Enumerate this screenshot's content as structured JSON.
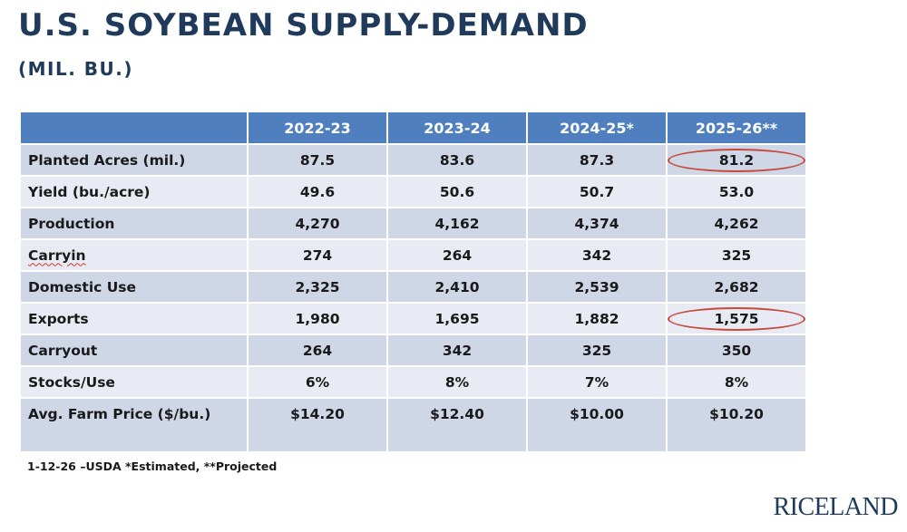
{
  "title": "U.S. SOYBEAN SUPPLY-DEMAND",
  "subtitle": "(MIL. BU.)",
  "table": {
    "columns": [
      "",
      "2022-23",
      "2023-24",
      "2024-25*",
      "2025-26**"
    ],
    "rows": [
      {
        "label": "Planted Acres (mil.)",
        "values": [
          "87.5",
          "83.6",
          "87.3",
          "81.2"
        ]
      },
      {
        "label": "Yield (bu./acre)",
        "values": [
          "49.6",
          "50.6",
          "50.7",
          "53.0"
        ]
      },
      {
        "label": "Production",
        "values": [
          "4,270",
          "4,162",
          "4,374",
          "4,262"
        ]
      },
      {
        "label": "Carryin",
        "values": [
          "274",
          "264",
          "342",
          "325"
        ]
      },
      {
        "label": "Domestic Use",
        "values": [
          "2,325",
          "2,410",
          "2,539",
          "2,682"
        ]
      },
      {
        "label": "Exports",
        "values": [
          "1,980",
          "1,695",
          "1,882",
          "1,575"
        ]
      },
      {
        "label": "Carryout",
        "values": [
          "264",
          "342",
          "325",
          "350"
        ]
      },
      {
        "label": "Stocks/Use",
        "values": [
          "6%",
          "8%",
          "7%",
          "8%"
        ]
      },
      {
        "label": "Avg. Farm Price ($/bu.)",
        "values": [
          "$14.20",
          "$12.40",
          "$10.00",
          "$10.20"
        ]
      }
    ]
  },
  "footnote": "1-12-26 –USDA  *Estimated, **Projected",
  "logo": "RICELAND",
  "colors": {
    "header_bg": "#4f7fbf",
    "row_dark": "#cfd6e6",
    "row_light": "#e8ebf3",
    "title": "#1f3a5a",
    "highlight_oval": "#c64a3c"
  }
}
